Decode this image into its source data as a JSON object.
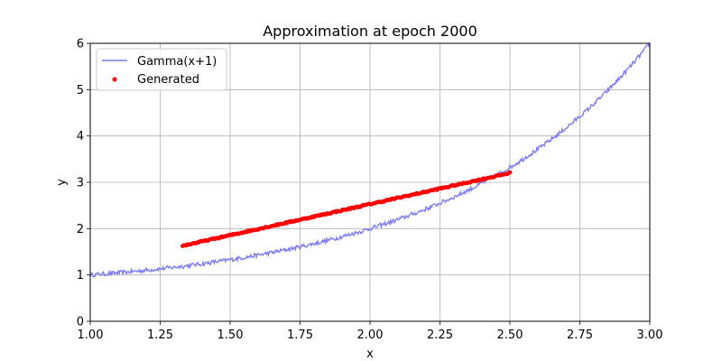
{
  "chart_data": {
    "type": "line",
    "title": "Approximation at epoch 2000",
    "xlabel": "x",
    "ylabel": "y",
    "xlim": [
      1.0,
      3.0
    ],
    "ylim": [
      0,
      6
    ],
    "x_ticks": [
      "1.00",
      "1.25",
      "1.50",
      "1.75",
      "2.00",
      "2.25",
      "2.50",
      "2.75",
      "3.00"
    ],
    "y_ticks": [
      "0",
      "1",
      "2",
      "3",
      "4",
      "5",
      "6"
    ],
    "grid": true,
    "legend_position": "upper-left",
    "series": [
      {
        "name": "Gamma(x+1)",
        "kind": "line",
        "color": "#7b7bf5",
        "function": "gamma(x+1)",
        "x_range": [
          1.0,
          3.0
        ],
        "sample_points": [
          [
            1.0,
            1.0
          ],
          [
            1.25,
            1.13
          ],
          [
            1.5,
            1.33
          ],
          [
            1.75,
            1.61
          ],
          [
            2.0,
            2.0
          ],
          [
            2.25,
            2.54
          ],
          [
            2.5,
            3.32
          ],
          [
            2.75,
            4.42
          ],
          [
            3.0,
            6.0
          ]
        ]
      },
      {
        "name": "Generated",
        "kind": "scatter",
        "color": "#ff0000",
        "x_range": [
          1.33,
          2.5
        ],
        "y_range": [
          1.63,
          3.2
        ],
        "points": [
          [
            1.33,
            1.63
          ],
          [
            1.5,
            1.85
          ],
          [
            1.75,
            2.2
          ],
          [
            2.0,
            2.55
          ],
          [
            2.25,
            2.88
          ],
          [
            2.5,
            3.2
          ]
        ]
      }
    ]
  }
}
